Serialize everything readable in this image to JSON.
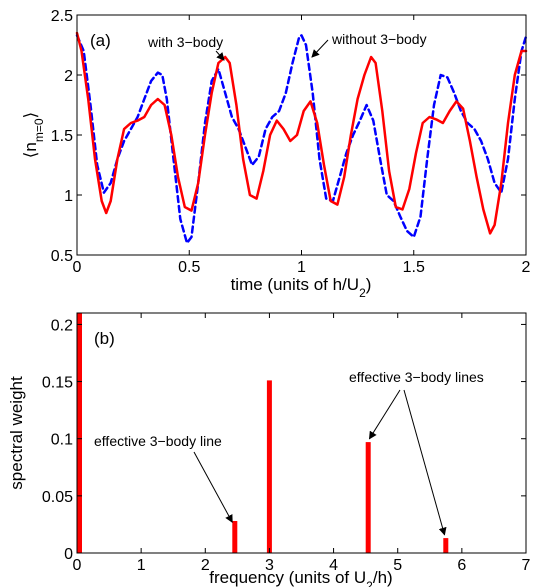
{
  "chart_data": [
    {
      "type": "line",
      "panel_label": "(a)",
      "xlabel": "time (units of h/U",
      "xlabel_sub": "2",
      "xlabel_tail": ")",
      "ylabel": "⟨n",
      "ylabel_sub": "m=0",
      "ylabel_tail": "⟩",
      "xlim": [
        0,
        2
      ],
      "ylim": [
        0.5,
        2.5
      ],
      "xticks": [
        {
          "v": 0,
          "t": "0"
        },
        {
          "v": 0.5,
          "t": "0.5"
        },
        {
          "v": 1,
          "t": "1"
        },
        {
          "v": 1.5,
          "t": "1.5"
        },
        {
          "v": 2,
          "t": "2"
        }
      ],
      "yticks": [
        {
          "v": 0.5,
          "t": "0.5"
        },
        {
          "v": 1,
          "t": "1"
        },
        {
          "v": 1.5,
          "t": "1.5"
        },
        {
          "v": 2,
          "t": "2"
        },
        {
          "v": 2.5,
          "t": "2.5"
        }
      ],
      "series": [
        {
          "color": "#ff0000",
          "style": "solid",
          "x": [
            0,
            0.02,
            0.05,
            0.08,
            0.11,
            0.13,
            0.15,
            0.18,
            0.21,
            0.24,
            0.27,
            0.3,
            0.33,
            0.36,
            0.39,
            0.42,
            0.45,
            0.48,
            0.51,
            0.54,
            0.57,
            0.6,
            0.63,
            0.66,
            0.68,
            0.71,
            0.74,
            0.77,
            0.8,
            0.83,
            0.86,
            0.89,
            0.92,
            0.95,
            0.98,
            1.01,
            1.04,
            1.07,
            1.1,
            1.13,
            1.16,
            1.19,
            1.22,
            1.25,
            1.28,
            1.31,
            1.33,
            1.36,
            1.39,
            1.42,
            1.45,
            1.48,
            1.51,
            1.54,
            1.57,
            1.6,
            1.63,
            1.66,
            1.69,
            1.72,
            1.75,
            1.78,
            1.81,
            1.84,
            1.86,
            1.89,
            1.92,
            1.95,
            1.98,
            2.0
          ],
          "y": [
            2.35,
            2.2,
            1.8,
            1.3,
            0.95,
            0.85,
            0.95,
            1.3,
            1.55,
            1.6,
            1.62,
            1.65,
            1.75,
            1.8,
            1.75,
            1.5,
            1.15,
            0.9,
            0.87,
            1.1,
            1.5,
            1.85,
            2.1,
            2.15,
            2.1,
            1.75,
            1.3,
            1.0,
            0.97,
            1.2,
            1.5,
            1.62,
            1.55,
            1.45,
            1.5,
            1.7,
            1.78,
            1.6,
            1.25,
            0.95,
            0.92,
            1.15,
            1.5,
            1.8,
            2.0,
            2.15,
            2.1,
            1.7,
            1.2,
            0.9,
            0.88,
            1.05,
            1.35,
            1.6,
            1.65,
            1.63,
            1.6,
            1.7,
            1.78,
            1.72,
            1.45,
            1.15,
            0.88,
            0.68,
            0.75,
            1.1,
            1.6,
            2.0,
            2.2,
            2.2
          ]
        },
        {
          "color": "#0000ff",
          "style": "dashed",
          "x": [
            0,
            0.03,
            0.06,
            0.09,
            0.12,
            0.15,
            0.18,
            0.21,
            0.24,
            0.27,
            0.3,
            0.33,
            0.36,
            0.38,
            0.4,
            0.43,
            0.46,
            0.49,
            0.51,
            0.54,
            0.57,
            0.6,
            0.63,
            0.66,
            0.69,
            0.72,
            0.75,
            0.78,
            0.81,
            0.84,
            0.87,
            0.9,
            0.93,
            0.96,
            0.99,
            1.0,
            1.02,
            1.05,
            1.08,
            1.11,
            1.14,
            1.17,
            1.2,
            1.23,
            1.26,
            1.29,
            1.32,
            1.35,
            1.38,
            1.41,
            1.44,
            1.47,
            1.5,
            1.53,
            1.56,
            1.59,
            1.62,
            1.65,
            1.68,
            1.71,
            1.74,
            1.77,
            1.8,
            1.83,
            1.86,
            1.89,
            1.92,
            1.95,
            1.98,
            2.0
          ],
          "y": [
            2.33,
            2.2,
            1.75,
            1.25,
            1.02,
            1.1,
            1.3,
            1.45,
            1.55,
            1.65,
            1.8,
            1.95,
            2.02,
            2.0,
            1.8,
            1.3,
            0.8,
            0.6,
            0.65,
            1.1,
            1.6,
            1.95,
            2.05,
            1.85,
            1.65,
            1.55,
            1.4,
            1.25,
            1.32,
            1.55,
            1.65,
            1.7,
            1.85,
            2.1,
            2.32,
            2.33,
            2.25,
            1.85,
            1.3,
            0.97,
            0.95,
            1.15,
            1.35,
            1.5,
            1.62,
            1.75,
            1.62,
            1.3,
            1.0,
            0.95,
            0.82,
            0.7,
            0.65,
            0.82,
            1.3,
            1.75,
            2.0,
            1.98,
            1.85,
            1.7,
            1.6,
            1.55,
            1.45,
            1.3,
            1.1,
            1.02,
            1.3,
            1.8,
            2.2,
            2.32
          ]
        }
      ],
      "annotations": [
        {
          "text": "with 3−body",
          "x": 0.68,
          "y": 2.15
        },
        {
          "text": "without 3−body",
          "x": 1.0,
          "y": 2.33
        }
      ]
    },
    {
      "type": "bar",
      "panel_label": "(b)",
      "xlabel": "frequency (units of U",
      "xlabel_sub": "2",
      "xlabel_tail": "/h)",
      "ylabel": "spectral weight",
      "xlim": [
        0,
        7
      ],
      "ylim": [
        0,
        0.21
      ],
      "xticks": [
        {
          "v": 0,
          "t": "0"
        },
        {
          "v": 1,
          "t": "1"
        },
        {
          "v": 2,
          "t": "2"
        },
        {
          "v": 3,
          "t": "3"
        },
        {
          "v": 4,
          "t": "4"
        },
        {
          "v": 5,
          "t": "5"
        },
        {
          "v": 6,
          "t": "6"
        },
        {
          "v": 7,
          "t": "7"
        }
      ],
      "yticks": [
        {
          "v": 0,
          "t": "0"
        },
        {
          "v": 0.05,
          "t": "0.05"
        },
        {
          "v": 0.1,
          "t": "0.1"
        },
        {
          "v": 0.15,
          "t": "0.15"
        },
        {
          "v": 0.2,
          "t": "0.2"
        }
      ],
      "color": "#ff0000",
      "x": [
        0,
        2.46,
        3.0,
        4.54,
        5.75
      ],
      "values": [
        0.21,
        0.028,
        0.151,
        0.097,
        0.013
      ],
      "annotations": [
        {
          "text": "effective 3−body line",
          "targets": [
            [
              2.42,
              0.027
            ]
          ]
        },
        {
          "text": "effective 3−body lines",
          "targets": [
            [
              4.56,
              0.1
            ],
            [
              5.73,
              0.016
            ]
          ]
        }
      ]
    }
  ]
}
